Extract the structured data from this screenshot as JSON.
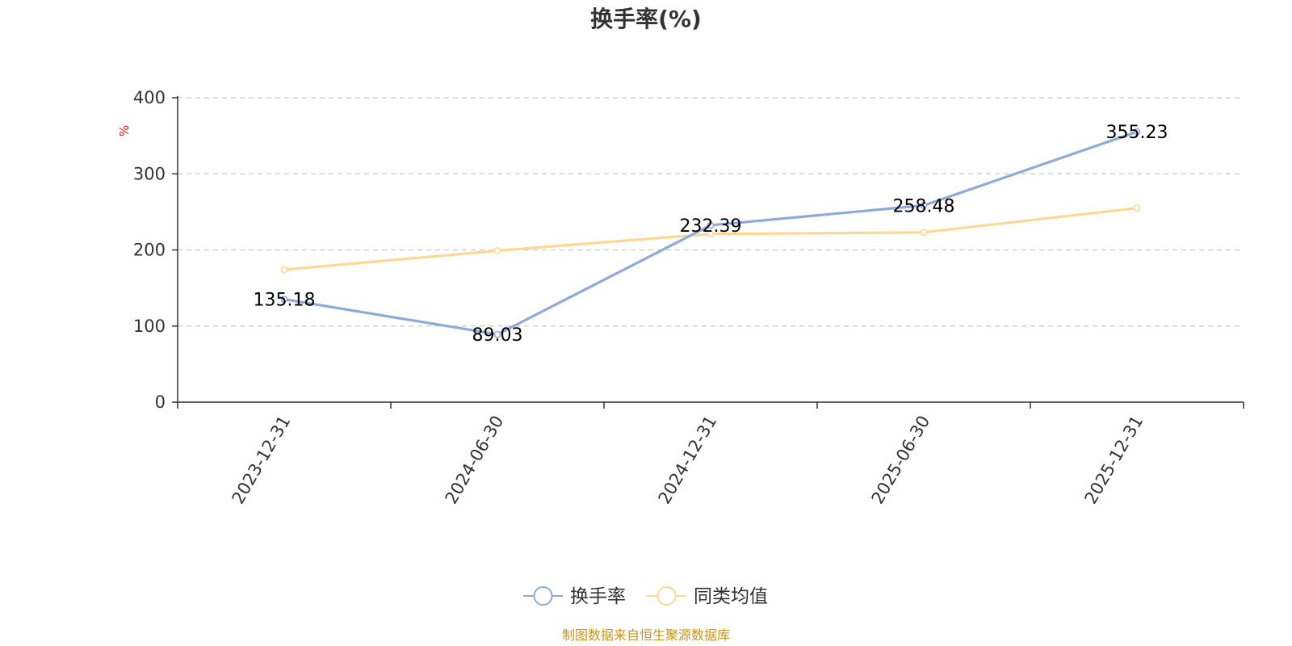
{
  "chart_data": {
    "type": "line",
    "title": "换手率(%)",
    "ylabel": "%",
    "xlabel": "",
    "ylim": [
      0,
      400
    ],
    "yticks": [
      0,
      100,
      200,
      300,
      400
    ],
    "categories": [
      "2023-12-31",
      "2024-06-30",
      "2024-12-31",
      "2025-06-30",
      "2025-12-31"
    ],
    "series": [
      {
        "name": "换手率",
        "color": "#8eaad8",
        "values": [
          135.18,
          89.03,
          232.39,
          258.48,
          355.23
        ],
        "labels": [
          "135.18",
          "89.03",
          "232.39",
          "258.48",
          "355.23"
        ],
        "show_labels": true
      },
      {
        "name": "同类均值",
        "color": "#fdd893",
        "values": [
          174,
          199,
          221,
          223,
          255
        ],
        "show_labels": false
      }
    ],
    "grid": true,
    "legend_position": "bottom-center"
  },
  "source_text": "制图数据来自恒生聚源数据库"
}
